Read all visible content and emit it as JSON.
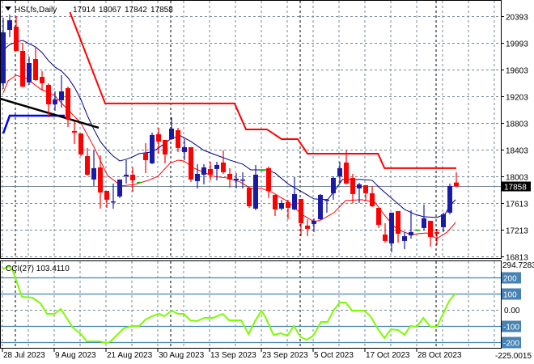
{
  "header": {
    "symbol": "HSI,fs,Daily",
    "open": "17914",
    "high": "18067",
    "low": "17842",
    "close": "17858"
  },
  "price_axis": [
    "20393",
    "19993",
    "19603",
    "19203",
    "18803",
    "18403",
    "18003",
    "17613",
    "17213",
    "16813"
  ],
  "current_price_label": "17858",
  "cci": {
    "title": "CCI(27) 103.4110",
    "max_label": "294.7283",
    "min_label": "-225.0015",
    "levels": [
      {
        "value": 200,
        "label": "200"
      },
      {
        "value": 100,
        "label": "100"
      },
      {
        "value": -100,
        "label": "-100"
      },
      {
        "value": -200,
        "label": "-200"
      }
    ],
    "zero_label": "0.00"
  },
  "date_labels": [
    {
      "index": 0,
      "label": "28 Jul 2023"
    },
    {
      "index": 8,
      "label": "9 Aug 2023"
    },
    {
      "index": 16,
      "label": "21 Aug 2023"
    },
    {
      "index": 24,
      "label": "30 Aug 2023"
    },
    {
      "index": 32,
      "label": "13 Sep 2023"
    },
    {
      "index": 40,
      "label": "23 Sep 2023"
    },
    {
      "index": 48,
      "label": "5 Oct 2023"
    },
    {
      "index": 56,
      "label": "17 Oct 2023"
    },
    {
      "index": 64,
      "label": "28 Oct 2023"
    }
  ],
  "colors": {
    "bull": "#1a1aa8",
    "bear": "#ff0000",
    "doji": "#00c000",
    "ma_fast": "#ff0000",
    "ma_slow": "#000080",
    "resistance": "#ff0000",
    "support": "#0000ff",
    "trend": "#000000",
    "cci": "#7cfc00",
    "level": "#4682b4",
    "grid": "#778899"
  },
  "chart_data": {
    "type": "candlestick",
    "title": "HSI,fs,Daily",
    "ylim": [
      16813,
      20393
    ],
    "month_separators": [
      2,
      26,
      46,
      67
    ],
    "candles": [
      [
        19393,
        20369,
        19308,
        20152
      ],
      [
        20188,
        20417,
        20080,
        20333
      ],
      [
        20236,
        20393,
        19875,
        19875
      ],
      [
        19875,
        19995,
        19333,
        19345
      ],
      [
        19405,
        19790,
        19369,
        19694
      ],
      [
        19754,
        19935,
        19429,
        19441
      ],
      [
        19489,
        19574,
        19284,
        19393
      ],
      [
        19369,
        19393,
        18887,
        19080
      ],
      [
        19080,
        19272,
        18983,
        19152
      ],
      [
        19140,
        19513,
        19031,
        19272
      ],
      [
        19321,
        19345,
        18742,
        18851
      ],
      [
        18682,
        18826,
        18489,
        18658
      ],
      [
        18646,
        18646,
        18308,
        18332
      ],
      [
        18308,
        18429,
        18019,
        18031
      ],
      [
        17959,
        18393,
        17863,
        18128
      ],
      [
        18140,
        18320,
        17525,
        17766
      ],
      [
        17790,
        17790,
        17537,
        17658
      ],
      [
        17622,
        17899,
        17525,
        17634
      ],
      [
        17706,
        17959,
        17682,
        17959
      ],
      [
        18007,
        18248,
        17899,
        18031
      ],
      [
        18031,
        18140,
        17778,
        17947
      ],
      [
        17915,
        17920,
        17905,
        17911
      ],
      [
        18356,
        18501,
        18055,
        18248
      ],
      [
        18200,
        18658,
        18188,
        18622
      ],
      [
        18634,
        18730,
        18344,
        18525
      ],
      [
        18549,
        18549,
        18200,
        18332
      ],
      [
        18561,
        18887,
        18549,
        18718
      ],
      [
        18694,
        18730,
        18369,
        18429
      ],
      [
        18369,
        18561,
        18248,
        18441
      ],
      [
        18441,
        18441,
        17923,
        17959
      ],
      [
        17935,
        18188,
        17826,
        18043
      ],
      [
        18031,
        18188,
        17887,
        18140
      ],
      [
        18116,
        18224,
        17947,
        18031
      ],
      [
        18116,
        18224,
        17947,
        18176
      ],
      [
        18212,
        18393,
        18043,
        18067
      ],
      [
        18043,
        18128,
        17838,
        17959
      ],
      [
        17947,
        18055,
        17826,
        17971
      ],
      [
        17947,
        18067,
        17826,
        17959
      ],
      [
        17838,
        17838,
        17537,
        17561
      ],
      [
        17525,
        18176,
        17501,
        18031
      ],
      [
        18095,
        18100,
        18085,
        18091
      ],
      [
        18128,
        18152,
        17682,
        17790
      ],
      [
        17730,
        17730,
        17417,
        17513
      ],
      [
        17525,
        17657,
        17501,
        17609
      ],
      [
        17622,
        17657,
        17368,
        17537
      ],
      [
        17513,
        17995,
        17501,
        17742
      ],
      [
        17670,
        17670,
        17115,
        17308
      ],
      [
        17272,
        17368,
        17115,
        17224
      ],
      [
        17296,
        17380,
        17176,
        17344
      ],
      [
        17368,
        17742,
        17356,
        17730
      ],
      [
        17646,
        17670,
        17465,
        17658
      ],
      [
        17754,
        18007,
        17658,
        17983
      ],
      [
        18007,
        18224,
        17899,
        18128
      ],
      [
        18212,
        18393,
        17887,
        17899
      ],
      [
        17983,
        18043,
        17609,
        17742
      ],
      [
        17826,
        17911,
        17609,
        17887
      ],
      [
        17875,
        17875,
        17646,
        17754
      ],
      [
        17754,
        17863,
        17549,
        17561
      ],
      [
        17537,
        17537,
        17236,
        17284
      ],
      [
        17139,
        17308,
        17019,
        17043
      ],
      [
        17007,
        17465,
        16874,
        17465
      ],
      [
        17489,
        17489,
        17019,
        17151
      ],
      [
        17043,
        17176,
        16922,
        17115
      ],
      [
        17127,
        17501,
        17079,
        17176
      ],
      [
        17204,
        17208,
        17196,
        17200
      ],
      [
        17236,
        17585,
        17200,
        17380
      ],
      [
        17344,
        17344,
        16959,
        17103
      ],
      [
        17176,
        17224,
        16983,
        17151
      ],
      [
        17248,
        17465,
        17176,
        17441
      ],
      [
        17465,
        17899,
        17441,
        17863
      ],
      [
        17914,
        18067,
        17842,
        17858
      ]
    ],
    "lines": {
      "ma_slow": [
        [
          0,
          19887
        ],
        [
          1,
          19971
        ],
        [
          2,
          20007
        ],
        [
          3,
          20032
        ],
        [
          4,
          19983
        ],
        [
          5,
          19935
        ],
        [
          6,
          19851
        ],
        [
          7,
          19730
        ],
        [
          8,
          19634
        ],
        [
          9,
          19574
        ],
        [
          10,
          19477
        ],
        [
          11,
          19333
        ],
        [
          12,
          19152
        ],
        [
          13,
          18911
        ],
        [
          14,
          18706
        ],
        [
          15,
          18525
        ],
        [
          16,
          18405
        ],
        [
          17,
          18308
        ],
        [
          18,
          18236
        ],
        [
          19,
          18260
        ],
        [
          20,
          18296
        ],
        [
          21,
          18345
        ],
        [
          22,
          18357
        ],
        [
          23,
          18369
        ],
        [
          24,
          18429
        ],
        [
          25,
          18501
        ],
        [
          26,
          18573
        ],
        [
          27.4,
          18610
        ],
        [
          29,
          18525
        ],
        [
          31,
          18393
        ],
        [
          33,
          18320
        ],
        [
          35,
          18248
        ],
        [
          37,
          18188
        ],
        [
          38.25,
          18103
        ],
        [
          40.75,
          18103
        ],
        [
          42,
          18055
        ],
        [
          44.1,
          17887
        ],
        [
          46.1,
          17778
        ],
        [
          48,
          17670
        ],
        [
          50.1,
          17658
        ],
        [
          51.1,
          17778
        ],
        [
          52.4,
          17959
        ],
        [
          55.4,
          17959
        ],
        [
          57,
          17947
        ],
        [
          58.25,
          17826
        ],
        [
          60.4,
          17646
        ],
        [
          62,
          17513
        ],
        [
          63.6,
          17441
        ],
        [
          64.9,
          17405
        ],
        [
          67,
          17393
        ],
        [
          68.25,
          17441
        ],
        [
          69.1,
          17585
        ],
        [
          69.9,
          17658
        ]
      ],
      "ma_fast": [
        [
          0,
          19248
        ],
        [
          0.75,
          19429
        ],
        [
          2,
          19513
        ],
        [
          3.6,
          19465
        ],
        [
          5.75,
          19308
        ],
        [
          7.9,
          19212
        ],
        [
          9.9,
          19007
        ],
        [
          12,
          18802
        ],
        [
          14.1,
          18429
        ],
        [
          16.1,
          18019
        ],
        [
          18.25,
          17863
        ],
        [
          20.4,
          17887
        ],
        [
          22.4,
          17947
        ],
        [
          23.9,
          18007
        ],
        [
          25.75,
          18200
        ],
        [
          27,
          18248
        ],
        [
          27.9,
          18236
        ],
        [
          29.5,
          18128
        ],
        [
          32.4,
          18007
        ],
        [
          34.5,
          17983
        ],
        [
          36.6,
          17923
        ],
        [
          38.25,
          17826
        ],
        [
          39.9,
          17826
        ],
        [
          41.6,
          17766
        ],
        [
          44.1,
          17622
        ],
        [
          46.1,
          17441
        ],
        [
          48,
          17332
        ],
        [
          49.1,
          17356
        ],
        [
          51.1,
          17465
        ],
        [
          52.9,
          17646
        ],
        [
          55.4,
          17658
        ],
        [
          57.4,
          17622
        ],
        [
          59.1,
          17405
        ],
        [
          60.75,
          17224
        ],
        [
          62.9,
          17139
        ],
        [
          65.4,
          17163
        ],
        [
          67,
          17079
        ],
        [
          68.6,
          17176
        ],
        [
          69.9,
          17320
        ]
      ],
      "resistance": [
        [
          10.3,
          20453
        ],
        [
          15.75,
          19092
        ],
        [
          35.75,
          19092
        ],
        [
          37.5,
          18706
        ],
        [
          40.75,
          18706
        ],
        [
          43,
          18561
        ],
        [
          45.5,
          18561
        ],
        [
          47,
          18344
        ],
        [
          57.9,
          18344
        ],
        [
          58.9,
          18128
        ],
        [
          70,
          18128
        ]
      ],
      "support": [
        [
          0,
          18646
        ],
        [
          1,
          18911
        ],
        [
          9.5,
          18911
        ]
      ],
      "trend": [
        [
          -0.5,
          19164
        ],
        [
          14.75,
          18730
        ]
      ]
    },
    "cci_series": [
      [
        -0.1,
        250
      ],
      [
        0.75,
        270
      ],
      [
        1.4,
        250
      ],
      [
        2.9,
        80
      ],
      [
        4.5,
        75
      ],
      [
        5.75,
        40
      ],
      [
        6.75,
        -25
      ],
      [
        7.9,
        -25
      ],
      [
        8.9,
        5
      ],
      [
        10.75,
        -110
      ],
      [
        12,
        -150
      ],
      [
        12.9,
        -195
      ],
      [
        14.9,
        -195
      ],
      [
        16,
        -205
      ],
      [
        16.6,
        -195
      ],
      [
        18.6,
        -115
      ],
      [
        19.9,
        -100
      ],
      [
        21,
        -100
      ],
      [
        22,
        -60
      ],
      [
        23.25,
        -35
      ],
      [
        24.1,
        -25
      ],
      [
        24.9,
        -40
      ],
      [
        26,
        -5
      ],
      [
        27,
        -25
      ],
      [
        27.9,
        -25
      ],
      [
        28.9,
        -65
      ],
      [
        29.9,
        -70
      ],
      [
        31.1,
        -50
      ],
      [
        32.4,
        -50
      ],
      [
        33.9,
        -25
      ],
      [
        34.9,
        -65
      ],
      [
        36.75,
        -65
      ],
      [
        37.9,
        -150
      ],
      [
        38.9,
        -70
      ],
      [
        39.9,
        -5
      ],
      [
        40.5,
        -45
      ],
      [
        41.75,
        -155
      ],
      [
        42.9,
        -145
      ],
      [
        43.9,
        -160
      ],
      [
        44.9,
        -100
      ],
      [
        46,
        -170
      ],
      [
        46.9,
        -185
      ],
      [
        47.9,
        -160
      ],
      [
        49.1,
        -75
      ],
      [
        50.1,
        -75
      ],
      [
        51.1,
        0
      ],
      [
        52,
        45
      ],
      [
        52.9,
        45
      ],
      [
        53.9,
        -5
      ],
      [
        55.75,
        -5
      ],
      [
        56.75,
        -40
      ],
      [
        57.9,
        -120
      ],
      [
        58.9,
        -175
      ],
      [
        59.9,
        -120
      ],
      [
        61,
        -125
      ],
      [
        62,
        -155
      ],
      [
        62.9,
        -100
      ],
      [
        63.9,
        -105
      ],
      [
        64.9,
        -50
      ],
      [
        66,
        -105
      ],
      [
        67,
        -105
      ],
      [
        68.9,
        55
      ],
      [
        69.9,
        103.411
      ]
    ],
    "cci_range": [
      -225.0015,
      294.7283
    ]
  }
}
